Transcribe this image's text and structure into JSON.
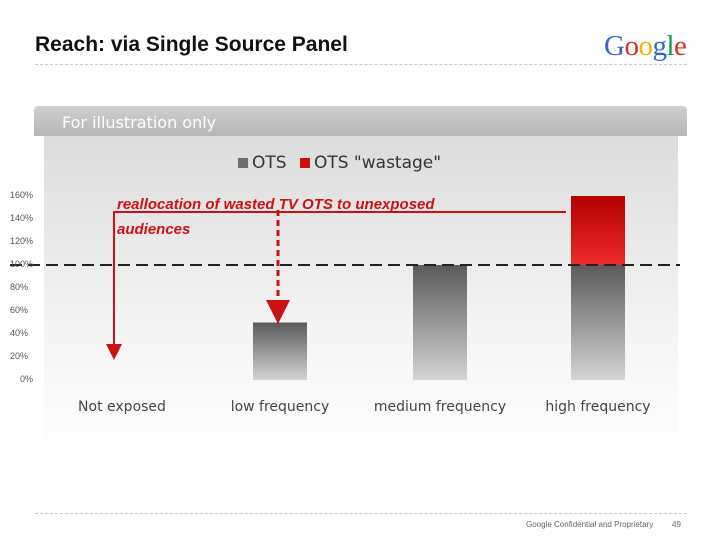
{
  "slide": {
    "title": "Reach: via Single Source Panel",
    "banner": "For illustration only",
    "annotation_line1": "reallocation of wasted TV OTS to unexposed",
    "annotation_line2": "audiences",
    "footer": "Google Confidential and Proprietary",
    "page_number": "49"
  },
  "logo": {
    "letters": [
      "G",
      "o",
      "o",
      "g",
      "l",
      "e"
    ],
    "colors": [
      "#3366cc",
      "#d93025",
      "#f4b400",
      "#3366cc",
      "#0f9d58",
      "#d93025"
    ]
  },
  "colors": {
    "ots": "#6e6e6e",
    "wastage": "#cc1111",
    "accent_red": "#cc1111"
  },
  "chart_data": {
    "type": "bar",
    "stacked": true,
    "title": "",
    "xlabel": "",
    "ylabel": "",
    "categories": [
      "Not exposed",
      "low frequency",
      "medium frequency",
      "high frequency"
    ],
    "series": [
      {
        "name": "OTS",
        "values": [
          0,
          50,
          100,
          100
        ]
      },
      {
        "name": "OTS \"wastage\"",
        "values": [
          0,
          0,
          0,
          60
        ]
      }
    ],
    "yticks": [
      "160%",
      "140%",
      "120%",
      "100%",
      "80%",
      "60%",
      "40%",
      "20%",
      "0%"
    ],
    "ylim": [
      0,
      160
    ],
    "reference_line": 100,
    "grid": false,
    "legend": "top-center"
  }
}
